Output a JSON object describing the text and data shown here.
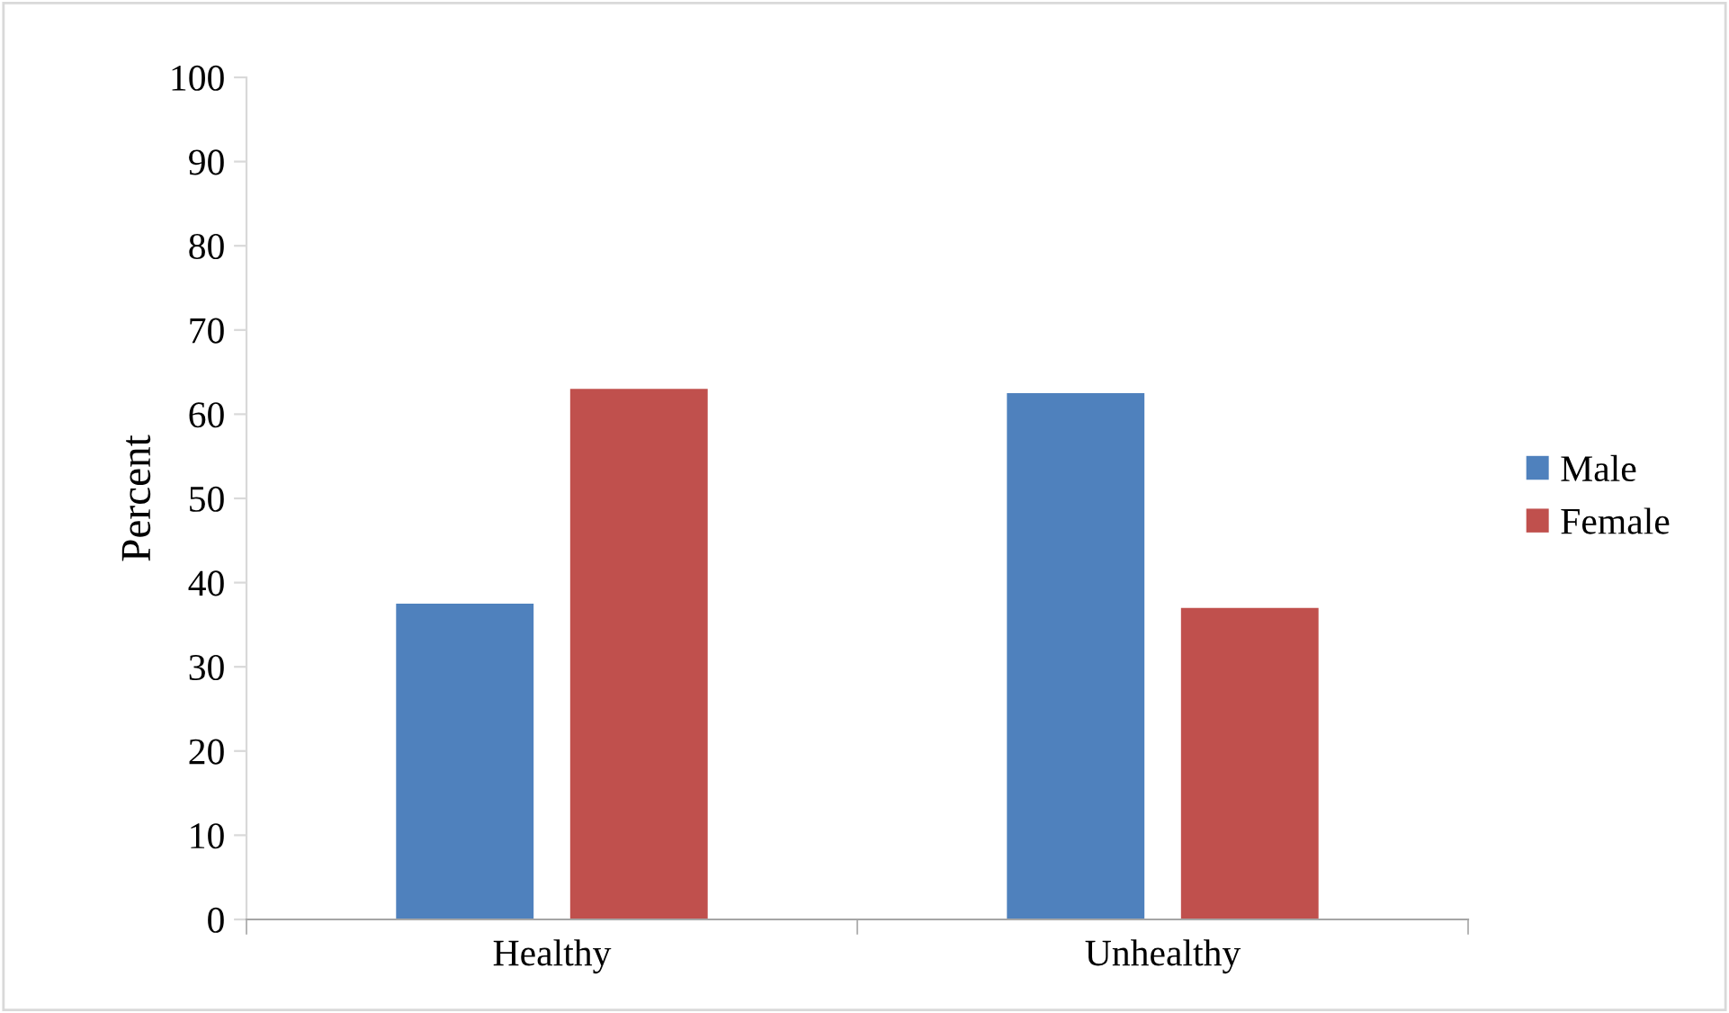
{
  "chart_data": {
    "type": "bar",
    "ylabel": "Percent",
    "categories": [
      "Healthy",
      "Unhealthy"
    ],
    "series": [
      {
        "name": "Male",
        "color": "#4f81bd",
        "values": [
          37.5,
          62.5
        ]
      },
      {
        "name": "Female",
        "color": "#c0504d",
        "values": [
          63,
          37
        ]
      }
    ],
    "ylim": [
      0,
      100
    ],
    "yticks": [
      0,
      10,
      20,
      30,
      40,
      50,
      60,
      70,
      80,
      90,
      100
    ],
    "grid": false,
    "legend": "right"
  }
}
